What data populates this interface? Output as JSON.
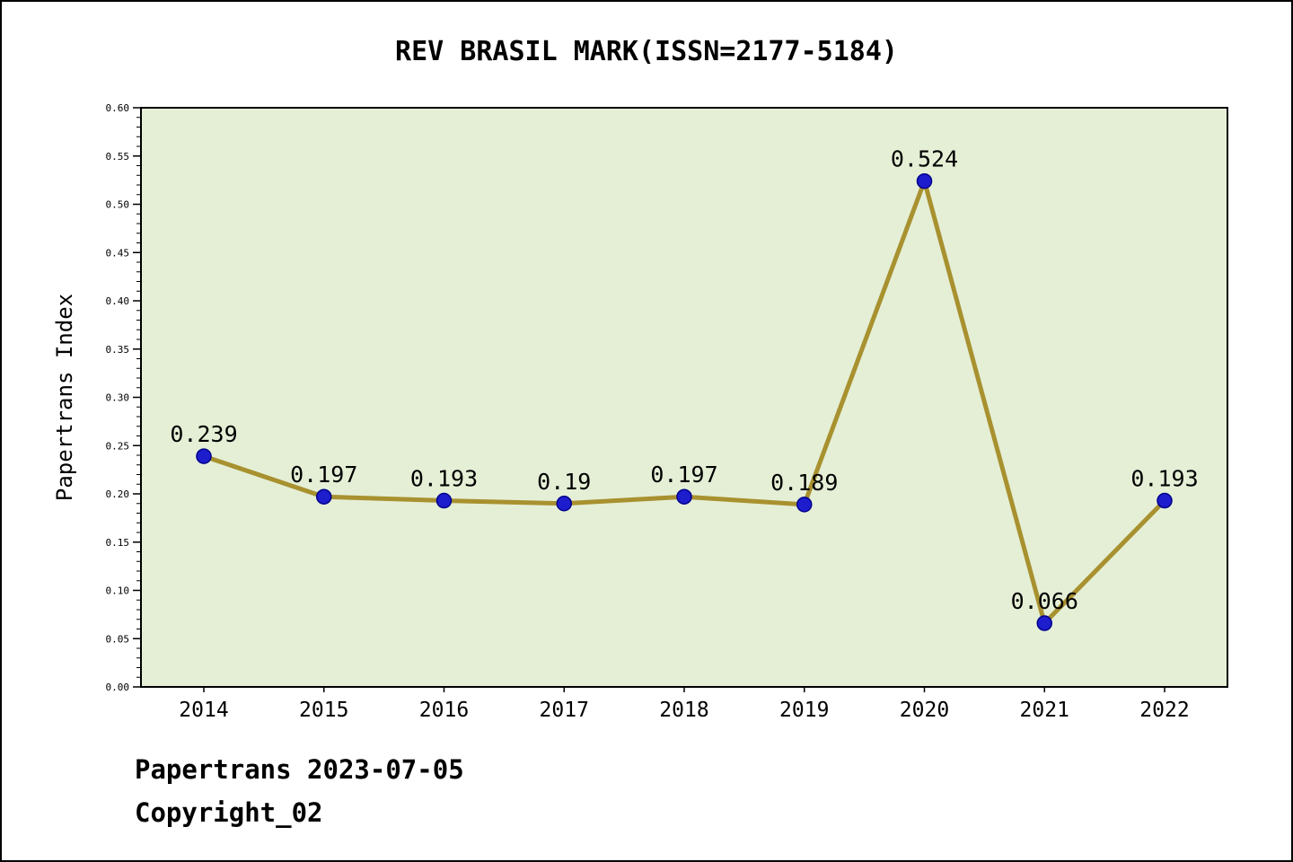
{
  "page": {
    "footer_line1": "Papertrans 2023-07-05",
    "footer_line2": "Copyright_02"
  },
  "chart_data": {
    "type": "line",
    "title": "REV BRASIL MARK(ISSN=2177-5184)",
    "xlabel": "",
    "ylabel": "Papertrans Index",
    "categories": [
      "2014",
      "2015",
      "2016",
      "2017",
      "2018",
      "2019",
      "2020",
      "2021",
      "2022"
    ],
    "values": [
      0.239,
      0.197,
      0.193,
      0.19,
      0.197,
      0.189,
      0.524,
      0.066,
      0.193
    ],
    "point_labels": [
      "0.239",
      "0.197",
      "0.193",
      "0.19",
      "0.197",
      "0.189",
      "0.524",
      "0.066",
      "0.193"
    ],
    "ylim": [
      0.0,
      0.6
    ],
    "ytick_major_step": 0.05,
    "ytick_minor_step": 0.01,
    "grid": false,
    "legend_position": "none",
    "colors": {
      "line": "#a8912f",
      "marker_fill": "#1d1dcd",
      "marker_edge": "#00008b",
      "plot_background": "#e5efd6",
      "page_background": "#ffffff",
      "text": "#000000"
    }
  }
}
